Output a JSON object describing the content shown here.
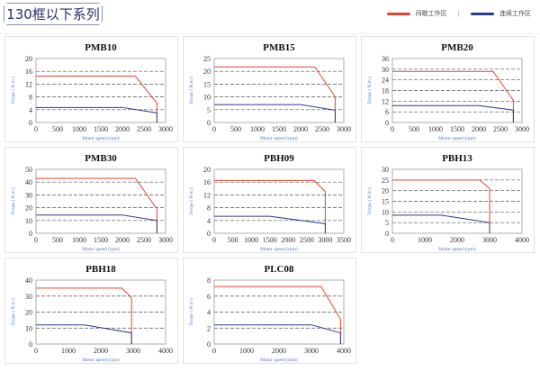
{
  "header": {
    "title": "130框以下系列",
    "legend": [
      {
        "label": "间歇工作区",
        "color": "#e8432f"
      },
      {
        "label": "连续工作区",
        "color": "#283a8c"
      }
    ],
    "separator": "|"
  },
  "chart_data": [
    {
      "type": "line",
      "title": "PMB10",
      "xlabel": "Motor speed (rpm)",
      "ylabel": "Torque ( N·m )",
      "xlim": [
        0,
        3000
      ],
      "xstep": 500,
      "ylim": [
        0,
        20
      ],
      "ystep": 4,
      "grid": "dashed horizontal",
      "series": [
        {
          "color": "#e8432f",
          "points": [
            [
              0,
              14.5
            ],
            [
              2300,
              14.5
            ],
            [
              2800,
              6
            ],
            [
              2800,
              0
            ]
          ]
        },
        {
          "color": "#283a8c",
          "points": [
            [
              0,
              4.7
            ],
            [
              2000,
              4.7
            ],
            [
              2800,
              3
            ],
            [
              2800,
              0
            ]
          ]
        }
      ]
    },
    {
      "type": "line",
      "title": "PMB15",
      "xlabel": "Motor speed (rpm)",
      "ylabel": "Torque ( N·m )",
      "xlim": [
        0,
        3000
      ],
      "xstep": 500,
      "ylim": [
        0,
        25
      ],
      "ystep": 5,
      "grid": "dashed horizontal",
      "series": [
        {
          "color": "#e8432f",
          "points": [
            [
              0,
              21.7
            ],
            [
              2330,
              21.7
            ],
            [
              2800,
              10
            ],
            [
              2800,
              0
            ]
          ]
        },
        {
          "color": "#283a8c",
          "points": [
            [
              0,
              7
            ],
            [
              2000,
              7
            ],
            [
              2800,
              4.8
            ],
            [
              2800,
              0
            ]
          ]
        }
      ]
    },
    {
      "type": "line",
      "title": "PMB20",
      "xlabel": "Motor speed (rpm)",
      "ylabel": "Torque ( N·m )",
      "xlim": [
        0,
        3000
      ],
      "xstep": 500,
      "ylim": [
        0,
        36
      ],
      "ystep": 6,
      "grid": "dashed horizontal",
      "series": [
        {
          "color": "#e8432f",
          "points": [
            [
              0,
              28.8
            ],
            [
              2330,
              28.8
            ],
            [
              2800,
              12.5
            ],
            [
              2800,
              0
            ]
          ]
        },
        {
          "color": "#283a8c",
          "points": [
            [
              0,
              9.5
            ],
            [
              2000,
              9.5
            ],
            [
              2800,
              7
            ],
            [
              2800,
              0
            ]
          ]
        }
      ]
    },
    {
      "type": "line",
      "title": "PMB30",
      "xlabel": "Motor speed (rpm)",
      "ylabel": "Torque ( N·m )",
      "xlim": [
        0,
        3000
      ],
      "xstep": 500,
      "ylim": [
        0,
        50
      ],
      "ystep": 10,
      "grid": "dashed horizontal",
      "series": [
        {
          "color": "#e8432f",
          "points": [
            [
              0,
              43
            ],
            [
              2300,
              43
            ],
            [
              2800,
              19
            ],
            [
              2800,
              0
            ]
          ]
        },
        {
          "color": "#283a8c",
          "points": [
            [
              0,
              14.3
            ],
            [
              2000,
              14.3
            ],
            [
              2800,
              10
            ],
            [
              2800,
              0
            ]
          ]
        }
      ]
    },
    {
      "type": "line",
      "title": "PBH09",
      "xlabel": "Motor speed (rpm)",
      "ylabel": "Torque ( N·m )",
      "xlim": [
        0,
        3500
      ],
      "xstep": 500,
      "ylim": [
        0,
        20
      ],
      "ystep": 4,
      "grid": "dashed horizontal",
      "series": [
        {
          "color": "#e8432f",
          "points": [
            [
              0,
              16.5
            ],
            [
              2700,
              16.5
            ],
            [
              3000,
              13
            ],
            [
              3000,
              0
            ]
          ]
        },
        {
          "color": "#283a8c",
          "points": [
            [
              0,
              5.3
            ],
            [
              1500,
              5.3
            ],
            [
              3000,
              3
            ],
            [
              3000,
              0
            ]
          ]
        }
      ]
    },
    {
      "type": "line",
      "title": "PBH13",
      "xlabel": "Motor speed (rpm)",
      "ylabel": "Torque ( N·m )",
      "xlim": [
        0,
        4000
      ],
      "xstep": 1000,
      "ylim": [
        0,
        30
      ],
      "ystep": 5,
      "grid": "dashed horizontal",
      "series": [
        {
          "color": "#e8432f",
          "points": [
            [
              0,
              25
            ],
            [
              2700,
              25
            ],
            [
              3000,
              21
            ],
            [
              3000,
              0
            ]
          ]
        },
        {
          "color": "#283a8c",
          "points": [
            [
              0,
              8.5
            ],
            [
              1500,
              8.5
            ],
            [
              3000,
              5
            ],
            [
              3000,
              0
            ]
          ]
        }
      ]
    },
    {
      "type": "line",
      "title": "PBH18",
      "xlabel": "Motor speed (rpm)",
      "ylabel": "Torque ( N·m )",
      "xlim": [
        0,
        4000
      ],
      "xstep": 1000,
      "ylim": [
        0,
        40
      ],
      "ystep": 10,
      "grid": "dashed horizontal",
      "series": [
        {
          "color": "#e8432f",
          "points": [
            [
              0,
              35
            ],
            [
              2650,
              35
            ],
            [
              2950,
              29
            ],
            [
              2950,
              0
            ]
          ]
        },
        {
          "color": "#283a8c",
          "points": [
            [
              0,
              12
            ],
            [
              1500,
              12
            ],
            [
              2950,
              7
            ],
            [
              2950,
              0
            ]
          ]
        }
      ]
    },
    {
      "type": "line",
      "title": "PLC08",
      "xlabel": "Motor speed (rpm)",
      "ylabel": "Torque ( N·m )",
      "xlim": [
        0,
        4000
      ],
      "xstep": 1000,
      "ylim": [
        0,
        8
      ],
      "ystep": 2,
      "grid": "dashed horizontal",
      "series": [
        {
          "color": "#e8432f",
          "points": [
            [
              0,
              7.2
            ],
            [
              3300,
              7.2
            ],
            [
              3900,
              3.1
            ],
            [
              3900,
              0
            ]
          ]
        },
        {
          "color": "#283a8c",
          "points": [
            [
              0,
              2.4
            ],
            [
              3000,
              2.4
            ],
            [
              3900,
              1.4
            ],
            [
              3900,
              0
            ]
          ]
        }
      ]
    }
  ]
}
